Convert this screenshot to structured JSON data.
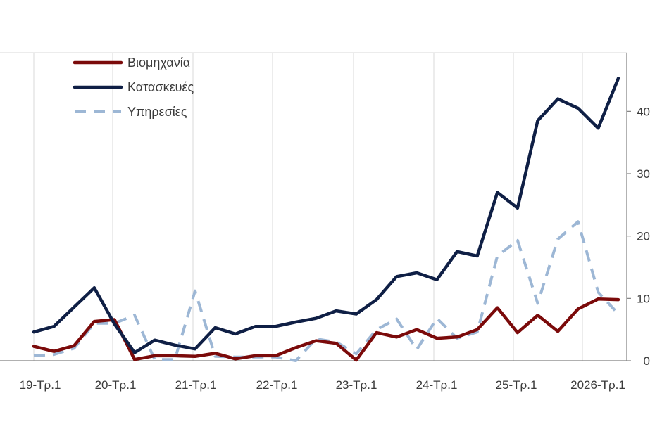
{
  "chart_data": {
    "type": "line",
    "title": "",
    "xlabel": "",
    "ylabel": "",
    "ylim": [
      0,
      50
    ],
    "yticks": [
      0,
      10,
      20,
      30,
      40
    ],
    "y_axis_side": "right",
    "grid": "vertical",
    "legend_position": "top-left",
    "x_tick_labels": [
      {
        "index": 0,
        "label": "19-Τρ.1"
      },
      {
        "index": 4,
        "label": "20-Τρ.1"
      },
      {
        "index": 8,
        "label": "21-Τρ.1"
      },
      {
        "index": 12,
        "label": "22-Τρ.1"
      },
      {
        "index": 16,
        "label": "23-Τρ.1"
      },
      {
        "index": 20,
        "label": "24-Τρ.1"
      },
      {
        "index": 24,
        "label": "25-Τρ.1"
      },
      {
        "index": 28,
        "label": "2026-Τρ.1"
      }
    ],
    "series": [
      {
        "name": "Βιομηχανία",
        "color": "#7b0a0a",
        "style": "solid",
        "values": [
          2.3,
          1.5,
          2.4,
          6.3,
          6.6,
          0.2,
          0.8,
          0.8,
          0.7,
          1.2,
          0.3,
          0.8,
          0.8,
          2.1,
          3.2,
          2.8,
          0.1,
          4.5,
          3.8,
          5.0,
          3.6,
          3.8,
          5.0,
          8.5,
          4.5,
          7.3,
          4.7,
          8.3,
          9.9,
          9.8
        ]
      },
      {
        "name": "Κατασκευές",
        "color": "#0f1f45",
        "style": "solid",
        "values": [
          4.6,
          5.5,
          8.6,
          11.7,
          5.9,
          1.3,
          3.3,
          2.5,
          1.9,
          5.3,
          4.3,
          5.5,
          5.5,
          6.2,
          6.8,
          8.0,
          7.5,
          9.8,
          13.5,
          14.1,
          13.0,
          17.5,
          16.8,
          27.0,
          24.5,
          38.5,
          42.0,
          40.5,
          37.3,
          45.3
        ]
      },
      {
        "name": "Υπηρεσίες",
        "color": "#9db7d5",
        "style": "dashed",
        "values": [
          0.8,
          1.0,
          2.0,
          6.0,
          6.0,
          7.3,
          0.2,
          0.2,
          11.2,
          0.7,
          0.6,
          0.6,
          0.6,
          0.0,
          3.5,
          3.0,
          1.1,
          5.0,
          6.7,
          1.8,
          6.8,
          3.6,
          4.6,
          16.8,
          19.3,
          9.2,
          19.5,
          22.3,
          11.0,
          7.5
        ]
      }
    ]
  }
}
